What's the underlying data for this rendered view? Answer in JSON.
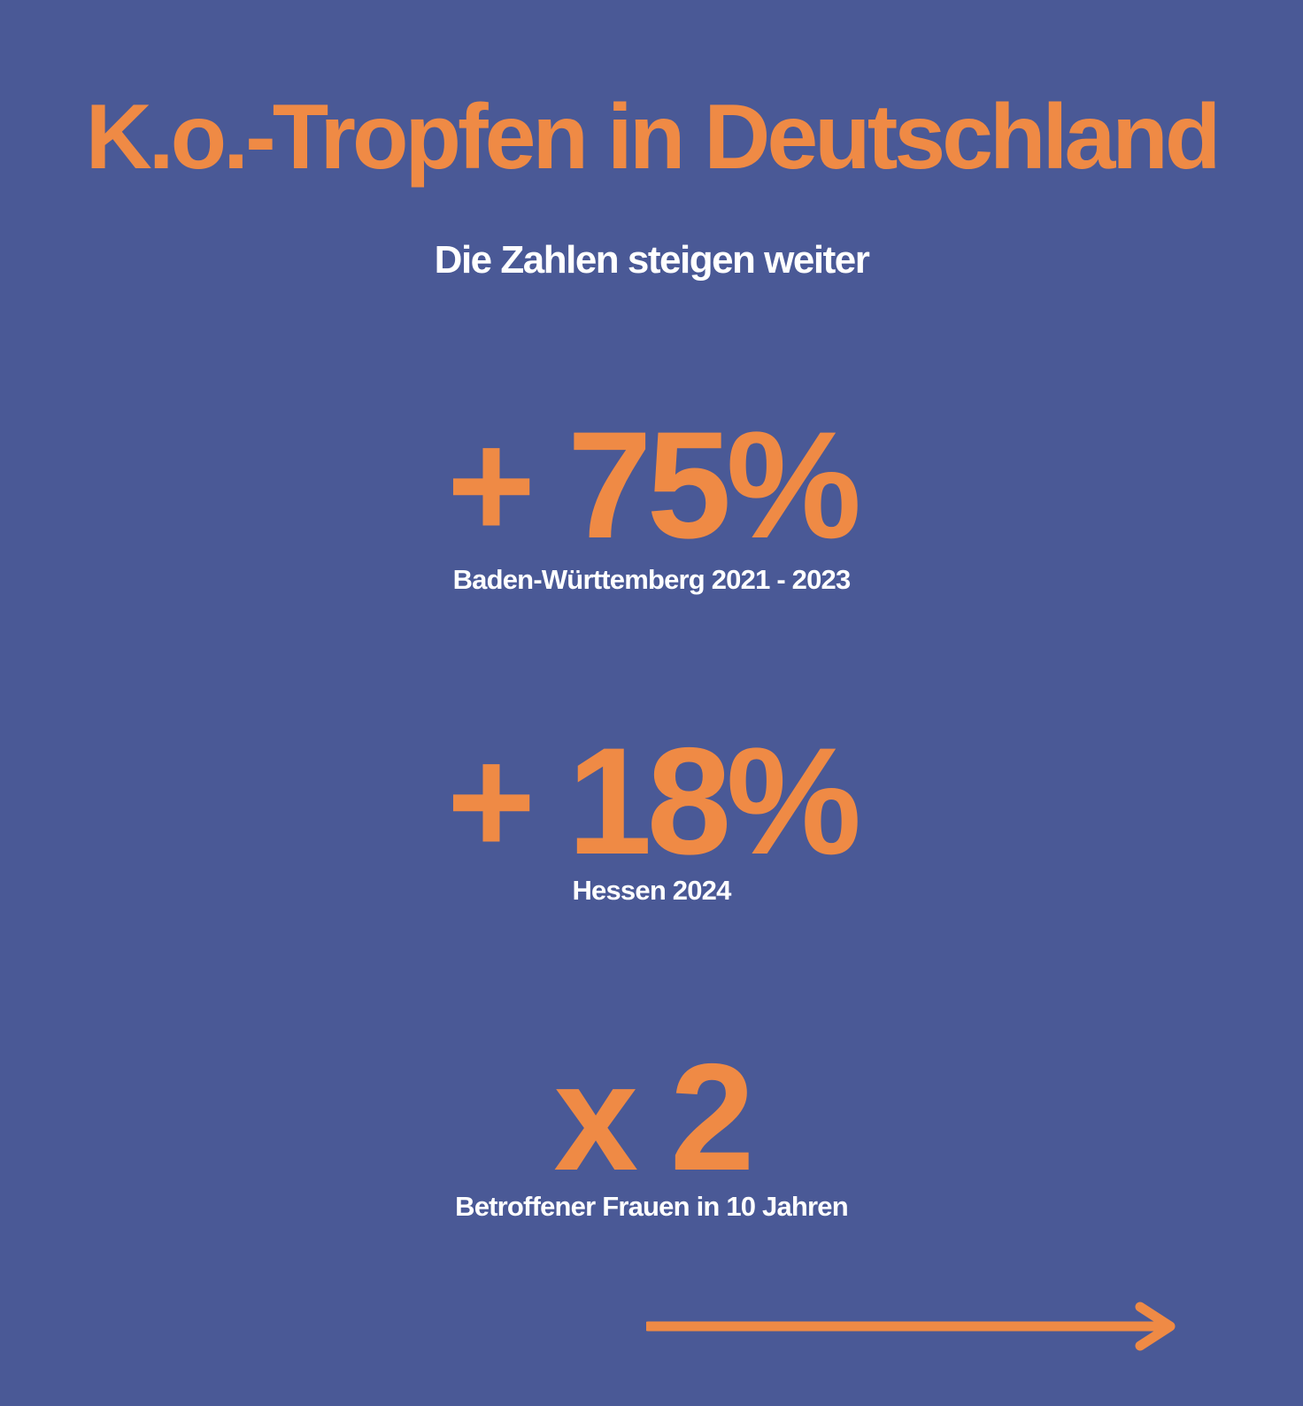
{
  "title": "K.o.-Tropfen in Deutschland",
  "subtitle": "Die Zahlen steigen weiter",
  "stats": [
    {
      "value": "+ 75%",
      "label": "Baden-Württemberg 2021 - 2023"
    },
    {
      "value": "+ 18%",
      "label": "Hessen 2024"
    },
    {
      "value": "x 2",
      "label": "Betroffener Frauen in 10 Jahren"
    }
  ],
  "colors": {
    "background": "#4a5996",
    "accent": "#ef8a45",
    "text": "#ffffff"
  },
  "icons": {
    "next": "arrow-right-icon"
  }
}
